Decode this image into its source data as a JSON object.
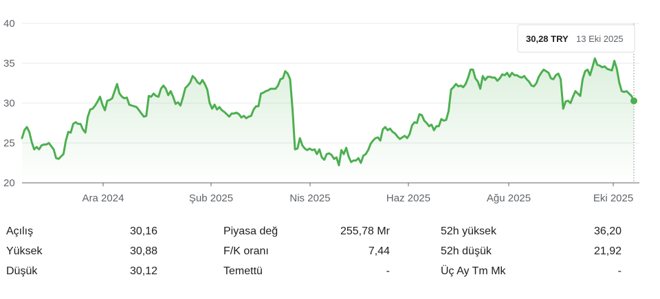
{
  "tooltip": {
    "value": "30,28 TRY",
    "date": "13 Eki 2025"
  },
  "colors": {
    "line": "#4caf50",
    "grid": "#e8eaed",
    "axis": "#5f6368"
  },
  "chart_data": {
    "type": "line",
    "x_ticks": [
      "Ara 2024",
      "Şub 2025",
      "Nis 2025",
      "Haz 2025",
      "Ağu 2025",
      "Eki 2025"
    ],
    "y_ticks": [
      "20",
      "25",
      "30",
      "35",
      "40"
    ],
    "ylim": [
      20,
      40
    ],
    "grid": "horizontal",
    "series": [
      {
        "values": [
          25.6,
          26.6,
          27.0,
          26.4,
          25.1,
          24.2,
          24.5,
          24.2,
          24.7,
          24.8,
          24.8,
          25.0,
          24.6,
          24.2,
          23.1,
          23.0,
          23.3,
          23.6,
          25.3,
          26.4,
          26.3,
          27.4,
          27.6,
          27.4,
          27.4,
          26.7,
          26.3,
          28.3,
          29.2,
          29.3,
          29.7,
          30.2,
          30.8,
          29.8,
          29.1,
          30.3,
          30.4,
          30.6,
          31.5,
          32.4,
          31.2,
          30.8,
          30.6,
          30.7,
          29.8,
          29.7,
          29.6,
          29.5,
          29.1,
          28.7,
          28.3,
          28.4,
          30.9,
          30.8,
          31.2,
          30.9,
          30.8,
          31.8,
          32.2,
          31.8,
          31.0,
          31.5,
          30.8,
          29.9,
          30.1,
          29.7,
          30.7,
          31.9,
          32.2,
          32.6,
          33.4,
          33.1,
          32.6,
          32.4,
          32.9,
          32.4,
          31.7,
          30.0,
          29.3,
          29.8,
          29.2,
          29.5,
          29.1,
          28.9,
          28.6,
          28.3,
          28.7,
          28.7,
          28.8,
          28.6,
          28.2,
          28.4,
          28.1,
          28.3,
          28.4,
          29.2,
          29.6,
          29.6,
          31.2,
          31.3,
          31.5,
          31.6,
          31.8,
          31.8,
          31.8,
          32.2,
          33.0,
          33.1,
          34.0,
          33.7,
          33.0,
          29.1,
          24.2,
          24.3,
          25.6,
          24.7,
          24.3,
          24.1,
          24.3,
          24.1,
          24.2,
          23.6,
          24.2,
          23.2,
          22.9,
          23.6,
          23.7,
          23.5,
          23.0,
          23.2,
          22.2,
          24.1,
          23.6,
          24.4,
          23.3,
          22.6,
          22.8,
          22.8,
          23.1,
          22.5,
          23.4,
          23.6,
          24.1,
          24.9,
          25.3,
          25.6,
          25.7,
          25.3,
          26.7,
          27.0,
          26.6,
          26.8,
          26.4,
          26.2,
          25.8,
          25.5,
          25.7,
          25.9,
          25.6,
          26.1,
          27.2,
          27.6,
          27.5,
          28.6,
          28.5,
          27.8,
          27.5,
          27.1,
          27.3,
          26.6,
          27.1,
          27.1,
          28.0,
          27.8,
          27.9,
          29.0,
          31.7,
          32.0,
          32.4,
          32.1,
          32.2,
          32.0,
          32.4,
          33.2,
          34.2,
          34.2,
          33.1,
          32.7,
          31.8,
          33.4,
          32.9,
          33.3,
          33.3,
          33.2,
          33.2,
          32.8,
          33.1,
          33.6,
          33.5,
          33.8,
          33.3,
          33.8,
          33.5,
          33.5,
          33.3,
          33.2,
          33.4,
          33.0,
          32.7,
          32.2,
          32.1,
          32.5,
          33.3,
          33.8,
          34.2,
          34.0,
          33.8,
          33.1,
          33.0,
          33.5,
          33.7,
          33.0,
          29.3,
          30.2,
          30.3,
          30.0,
          30.8,
          31.5,
          31.2,
          30.9,
          33.0,
          34.0,
          34.2,
          33.5,
          34.5,
          35.6,
          34.8,
          34.7,
          34.5,
          34.6,
          34.3,
          34.2,
          34.1,
          35.3,
          34.3,
          32.6,
          31.5,
          31.4,
          31.5,
          31.2,
          30.9,
          30.28
        ]
      }
    ]
  },
  "stats": {
    "col1": [
      {
        "label": "Açılış",
        "value": "30,16"
      },
      {
        "label": "Yüksek",
        "value": "30,88"
      },
      {
        "label": "Düşük",
        "value": "30,12"
      }
    ],
    "col2": [
      {
        "label": "Piyasa değ",
        "value": "255,78 Mr"
      },
      {
        "label": "F/K oranı",
        "value": "7,44"
      },
      {
        "label": "Temettü",
        "value": "-"
      }
    ],
    "col3": [
      {
        "label": "52h yüksek",
        "value": "36,20"
      },
      {
        "label": "52h düşük",
        "value": "21,92"
      },
      {
        "label": "Üç Ay Tm Mk",
        "value": "-"
      }
    ]
  }
}
